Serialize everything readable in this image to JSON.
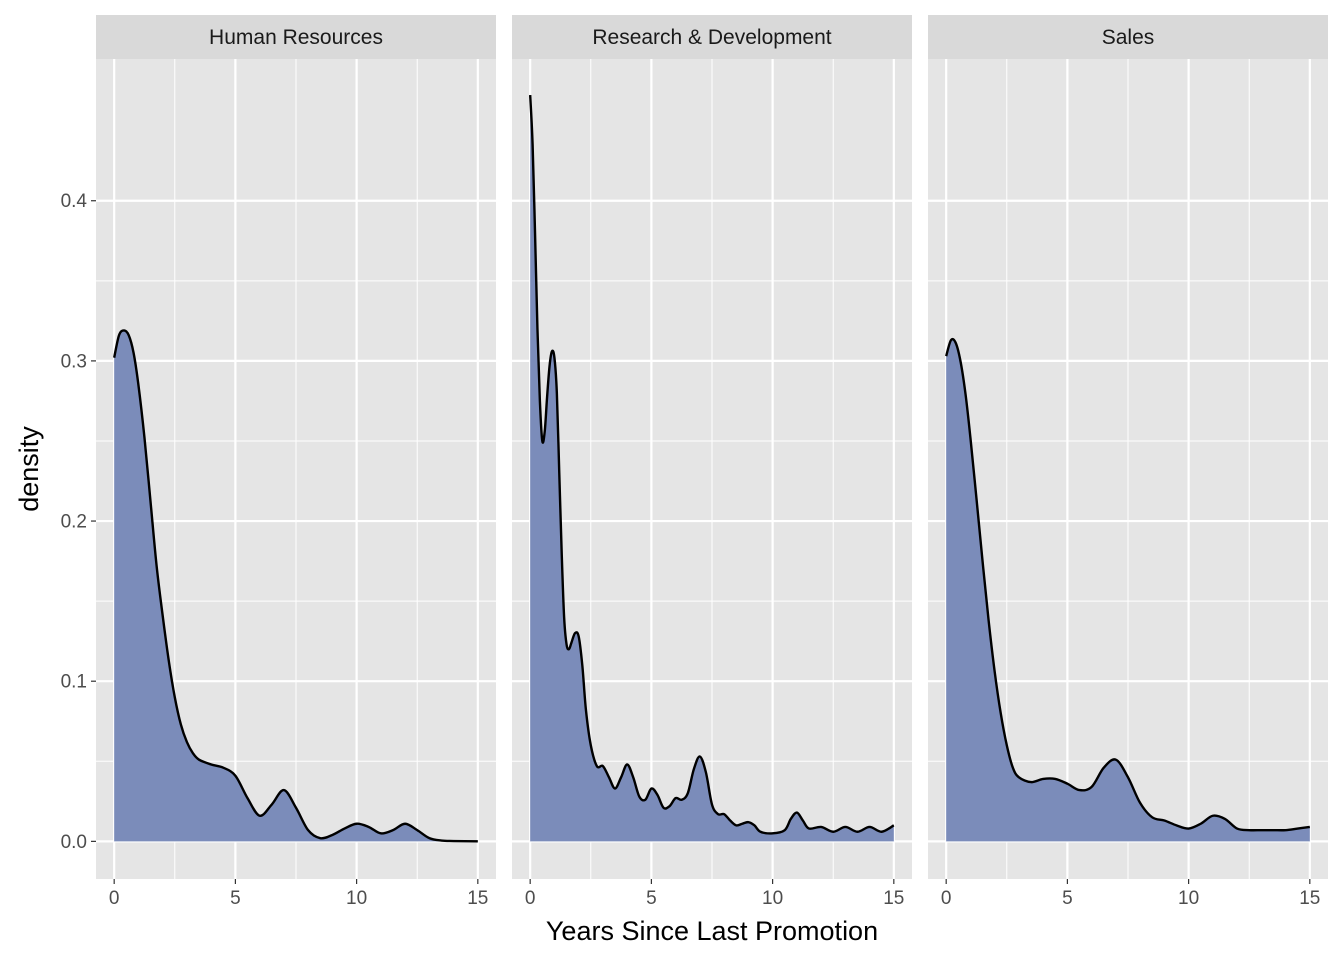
{
  "chart_data": {
    "type": "area",
    "xlabel": "Years Since Last Promotion",
    "ylabel": "density",
    "xlim": [
      -0.75,
      15.75
    ],
    "ylim": [
      -0.0235,
      0.4885
    ],
    "x_ticks": [
      0,
      5,
      10,
      15
    ],
    "x_tick_labels": [
      "0",
      "5",
      "10",
      "15"
    ],
    "y_ticks": [
      0.0,
      0.1,
      0.2,
      0.3,
      0.4
    ],
    "y_tick_labels": [
      "0.0",
      "0.1",
      "0.2",
      "0.3",
      "0.4"
    ],
    "grid": true,
    "legend": "none",
    "colors": {
      "fill": "#7b8cba",
      "line": "#000000",
      "panel_background": "#e5e5e5",
      "strip_background": "#d9d9d9",
      "grid": "#ffffff"
    },
    "facets": [
      {
        "label": "Human Resources",
        "points": [
          [
            0,
            0.302
          ],
          [
            0.2,
            0.316
          ],
          [
            0.4,
            0.319
          ],
          [
            0.6,
            0.316
          ],
          [
            0.8,
            0.305
          ],
          [
            1.0,
            0.285
          ],
          [
            1.25,
            0.252
          ],
          [
            1.5,
            0.212
          ],
          [
            1.75,
            0.172
          ],
          [
            2.0,
            0.141
          ],
          [
            2.25,
            0.113
          ],
          [
            2.5,
            0.09
          ],
          [
            2.75,
            0.073
          ],
          [
            3.0,
            0.062
          ],
          [
            3.25,
            0.055
          ],
          [
            3.5,
            0.051
          ],
          [
            4.0,
            0.048
          ],
          [
            4.5,
            0.046
          ],
          [
            5.0,
            0.041
          ],
          [
            5.5,
            0.027
          ],
          [
            6.0,
            0.016
          ],
          [
            6.5,
            0.023
          ],
          [
            7.0,
            0.032
          ],
          [
            7.5,
            0.021
          ],
          [
            8.0,
            0.007
          ],
          [
            8.5,
            0.002
          ],
          [
            9.0,
            0.004
          ],
          [
            9.5,
            0.008
          ],
          [
            10.0,
            0.011
          ],
          [
            10.5,
            0.009
          ],
          [
            11.0,
            0.005
          ],
          [
            11.5,
            0.007
          ],
          [
            12.0,
            0.011
          ],
          [
            12.5,
            0.007
          ],
          [
            13.0,
            0.002
          ],
          [
            13.5,
            0.0005
          ],
          [
            14.0,
            0.0002
          ],
          [
            15.0,
            0.0
          ]
        ]
      },
      {
        "label": "Research & Development",
        "points": [
          [
            0,
            0.466
          ],
          [
            0.1,
            0.435
          ],
          [
            0.2,
            0.38
          ],
          [
            0.3,
            0.32
          ],
          [
            0.4,
            0.275
          ],
          [
            0.5,
            0.25
          ],
          [
            0.6,
            0.256
          ],
          [
            0.7,
            0.278
          ],
          [
            0.8,
            0.297
          ],
          [
            0.9,
            0.306
          ],
          [
            1.0,
            0.302
          ],
          [
            1.1,
            0.28
          ],
          [
            1.2,
            0.23
          ],
          [
            1.3,
            0.18
          ],
          [
            1.4,
            0.14
          ],
          [
            1.5,
            0.123
          ],
          [
            1.6,
            0.12
          ],
          [
            1.7,
            0.124
          ],
          [
            1.85,
            0.13
          ],
          [
            2.0,
            0.128
          ],
          [
            2.15,
            0.11
          ],
          [
            2.3,
            0.082
          ],
          [
            2.5,
            0.06
          ],
          [
            2.75,
            0.047
          ],
          [
            3.0,
            0.047
          ],
          [
            3.25,
            0.04
          ],
          [
            3.5,
            0.033
          ],
          [
            3.75,
            0.04
          ],
          [
            4.0,
            0.048
          ],
          [
            4.25,
            0.04
          ],
          [
            4.5,
            0.028
          ],
          [
            4.75,
            0.026
          ],
          [
            5.0,
            0.033
          ],
          [
            5.25,
            0.029
          ],
          [
            5.5,
            0.021
          ],
          [
            5.75,
            0.022
          ],
          [
            6.0,
            0.027
          ],
          [
            6.25,
            0.026
          ],
          [
            6.5,
            0.03
          ],
          [
            6.75,
            0.045
          ],
          [
            7.0,
            0.053
          ],
          [
            7.25,
            0.043
          ],
          [
            7.5,
            0.023
          ],
          [
            7.75,
            0.017
          ],
          [
            8.0,
            0.017
          ],
          [
            8.25,
            0.013
          ],
          [
            8.5,
            0.01
          ],
          [
            8.75,
            0.011
          ],
          [
            9.0,
            0.012
          ],
          [
            9.25,
            0.01
          ],
          [
            9.5,
            0.006
          ],
          [
            10.0,
            0.005
          ],
          [
            10.5,
            0.007
          ],
          [
            10.75,
            0.014
          ],
          [
            11.0,
            0.018
          ],
          [
            11.25,
            0.013
          ],
          [
            11.5,
            0.008
          ],
          [
            12.0,
            0.009
          ],
          [
            12.5,
            0.006
          ],
          [
            13.0,
            0.009
          ],
          [
            13.5,
            0.006
          ],
          [
            14.0,
            0.009
          ],
          [
            14.5,
            0.006
          ],
          [
            15.0,
            0.01
          ]
        ]
      },
      {
        "label": "Sales",
        "points": [
          [
            0,
            0.303
          ],
          [
            0.2,
            0.313
          ],
          [
            0.4,
            0.311
          ],
          [
            0.6,
            0.299
          ],
          [
            0.8,
            0.279
          ],
          [
            1.0,
            0.252
          ],
          [
            1.25,
            0.214
          ],
          [
            1.5,
            0.175
          ],
          [
            1.75,
            0.138
          ],
          [
            2.0,
            0.106
          ],
          [
            2.25,
            0.08
          ],
          [
            2.5,
            0.06
          ],
          [
            2.75,
            0.046
          ],
          [
            3.0,
            0.04
          ],
          [
            3.5,
            0.037
          ],
          [
            4.0,
            0.039
          ],
          [
            4.5,
            0.039
          ],
          [
            5.0,
            0.036
          ],
          [
            5.5,
            0.032
          ],
          [
            6.0,
            0.034
          ],
          [
            6.5,
            0.046
          ],
          [
            7.0,
            0.051
          ],
          [
            7.5,
            0.04
          ],
          [
            8.0,
            0.024
          ],
          [
            8.5,
            0.015
          ],
          [
            9.0,
            0.013
          ],
          [
            9.5,
            0.01
          ],
          [
            10.0,
            0.008
          ],
          [
            10.5,
            0.011
          ],
          [
            11.0,
            0.016
          ],
          [
            11.5,
            0.014
          ],
          [
            12.0,
            0.008
          ],
          [
            12.5,
            0.007
          ],
          [
            13.0,
            0.007
          ],
          [
            13.5,
            0.007
          ],
          [
            14.0,
            0.007
          ],
          [
            14.5,
            0.008
          ],
          [
            15.0,
            0.009
          ]
        ]
      }
    ]
  }
}
